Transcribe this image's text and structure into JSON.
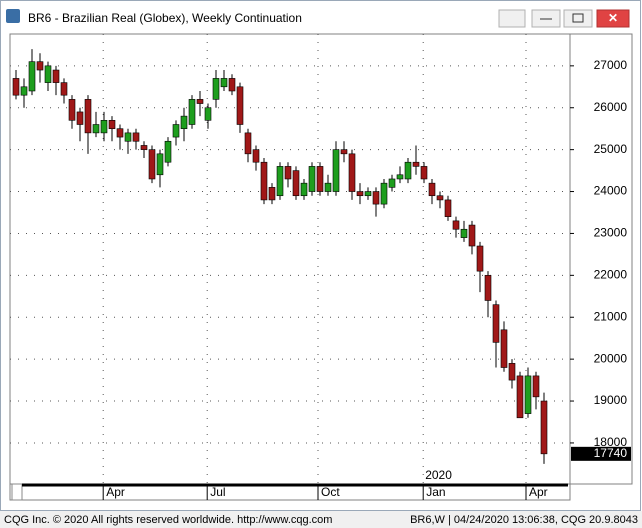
{
  "window": {
    "title": "BR6 - Brazilian Real (Globex), Weekly Continuation",
    "status_left": "CQG Inc. © 2020 All rights reserved worldwide.  http://www.cqg.com",
    "status_right": "BR6,W | 04/24/2020 13:06:38, CQG 20.9.8043"
  },
  "chart_data": {
    "type": "candlestick",
    "up_color": "#1e9e1e",
    "down_color": "#a01818",
    "grid": true,
    "open": [
      26700,
      26300,
      26400,
      27100,
      26600,
      26900,
      26600,
      26200,
      25900,
      26200,
      25400,
      25400,
      25700,
      25500,
      25200,
      25400,
      25100,
      25000,
      24400,
      24700,
      25300,
      25500,
      25600,
      26200,
      25700,
      26200,
      26500,
      26700,
      26500,
      25400,
      25000,
      24700,
      24100,
      23900,
      24600,
      24500,
      23900,
      24000,
      24600,
      24000,
      24000,
      25000,
      24900,
      24000,
      23900,
      24000,
      23700,
      24100,
      24300,
      24300,
      24700,
      24600,
      24200,
      23900,
      23800,
      23300,
      22900,
      23200,
      22700,
      22000,
      21300,
      20700,
      19900,
      19600,
      18700,
      19600,
      19000
    ],
    "high": [
      26900,
      26700,
      27400,
      27300,
      27100,
      27000,
      26700,
      26300,
      26000,
      26300,
      25900,
      25900,
      25800,
      25600,
      25500,
      25500,
      25200,
      25100,
      25000,
      25300,
      25700,
      26000,
      26300,
      26400,
      26100,
      26900,
      26900,
      26800,
      26600,
      25500,
      25100,
      24800,
      24200,
      24700,
      24700,
      24600,
      24300,
      24700,
      24700,
      24400,
      25200,
      25200,
      25000,
      24200,
      24100,
      24100,
      24300,
      24400,
      24600,
      24800,
      25100,
      24700,
      24300,
      24000,
      23900,
      23400,
      23300,
      23300,
      22800,
      22100,
      21400,
      20900,
      20000,
      19700,
      19800,
      19700,
      19200
    ],
    "low": [
      26200,
      26000,
      26300,
      26600,
      26400,
      26300,
      26100,
      25500,
      25200,
      24900,
      25300,
      25200,
      25200,
      25000,
      24900,
      25000,
      24800,
      24200,
      24100,
      24600,
      25100,
      25200,
      25500,
      25800,
      25500,
      26000,
      26400,
      26300,
      25400,
      24700,
      24500,
      23700,
      23700,
      23800,
      24100,
      23800,
      23800,
      23900,
      23900,
      23900,
      23900,
      24700,
      23800,
      23700,
      23800,
      23400,
      23600,
      24000,
      24200,
      24200,
      24400,
      24200,
      23700,
      23600,
      23300,
      22900,
      22800,
      22500,
      21600,
      21000,
      19800,
      19700,
      19300,
      18600,
      18600,
      18800,
      17500
    ],
    "close": [
      26300,
      26500,
      27100,
      26900,
      27000,
      26600,
      26300,
      25700,
      25600,
      25400,
      25600,
      25700,
      25500,
      25300,
      25400,
      25200,
      25000,
      24300,
      24900,
      25200,
      25600,
      25800,
      26200,
      26100,
      26000,
      26700,
      26700,
      26400,
      25600,
      24900,
      24700,
      23800,
      23800,
      24600,
      24300,
      23900,
      24200,
      24600,
      24000,
      24200,
      25000,
      24900,
      24000,
      23900,
      24000,
      23700,
      24200,
      24300,
      24400,
      24700,
      24600,
      24300,
      23900,
      23800,
      23400,
      23100,
      23100,
      22700,
      22100,
      21400,
      20400,
      19800,
      19500,
      18600,
      19600,
      19100,
      17740
    ],
    "last_price": 17740,
    "ylim": [
      17020,
      27760
    ],
    "yticks": [
      18000,
      19000,
      20000,
      21000,
      22000,
      23000,
      24000,
      25000,
      26000,
      27000
    ],
    "xlim": [
      -0.75,
      69.25
    ],
    "xticks": [
      {
        "value": 10.9,
        "label": "Apr"
      },
      {
        "value": 23.9,
        "label": "Jul"
      },
      {
        "value": 37.75,
        "label": "Oct"
      },
      {
        "value": 50.9,
        "label": "Jan"
      },
      {
        "value": 63.75,
        "label": "Apr"
      }
    ],
    "year_label": "2020"
  }
}
